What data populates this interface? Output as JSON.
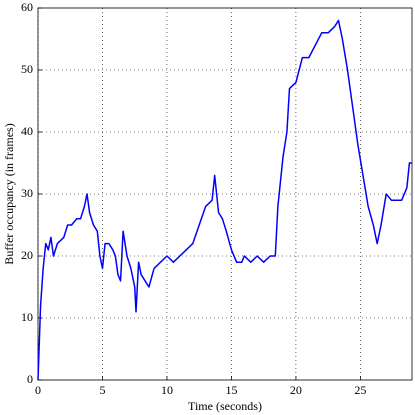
{
  "chart_data": {
    "type": "line",
    "xlabel": "Time (seconds)",
    "ylabel": "Buffer occupancy (in frames)",
    "xlim": [
      0,
      29
    ],
    "xticks": [
      0,
      5,
      10,
      15,
      20,
      25
    ],
    "ylim": [
      0,
      60
    ],
    "yticks": [
      0,
      10,
      20,
      30,
      40,
      50,
      60
    ],
    "grid": true,
    "series": [
      {
        "color": "#0000ff",
        "x": [
          0,
          0.2,
          0.4,
          0.6,
          0.8,
          1.0,
          1.2,
          1.5,
          2,
          2.3,
          2.6,
          3,
          3.3,
          3.6,
          3.8,
          4,
          4.3,
          4.6,
          4.8,
          5,
          5.2,
          5.5,
          5.8,
          6,
          6.2,
          6.4,
          6.6,
          6.9,
          7.2,
          7.5,
          7.6,
          7.8,
          8,
          8.3,
          8.6,
          9,
          9.5,
          10,
          10.5,
          11,
          11.5,
          12,
          12.5,
          13,
          13.5,
          13.7,
          14,
          14.3,
          14.6,
          15,
          15.4,
          15.8,
          16,
          16.5,
          17,
          17.5,
          18,
          18.4,
          18.6,
          19,
          19.3,
          19.5,
          20,
          20.5,
          21,
          21.5,
          22,
          22.5,
          23,
          23.3,
          23.6,
          24,
          24.4,
          24.8,
          25.2,
          25.6,
          26,
          26.3,
          26.6,
          27,
          27.4,
          27.8,
          28.2,
          28.6,
          28.8,
          29
        ],
        "values": [
          0,
          12,
          18,
          22,
          21,
          23,
          20,
          22,
          23,
          25,
          25,
          26,
          26,
          28,
          30,
          27,
          25,
          24,
          20,
          18,
          22,
          22,
          21,
          20,
          17,
          16,
          24,
          20,
          18,
          15,
          11,
          19,
          17,
          16,
          15,
          18,
          19,
          20,
          19,
          20,
          21,
          22,
          25,
          28,
          29,
          33,
          27,
          26,
          24,
          21,
          19,
          19,
          20,
          19,
          20,
          19,
          20,
          20,
          28,
          36,
          40,
          47,
          48,
          52,
          52,
          54,
          56,
          56,
          57,
          58,
          55,
          50,
          44,
          38,
          33,
          28,
          25,
          22,
          25,
          30,
          29,
          29,
          29,
          31,
          35,
          35
        ]
      }
    ]
  }
}
